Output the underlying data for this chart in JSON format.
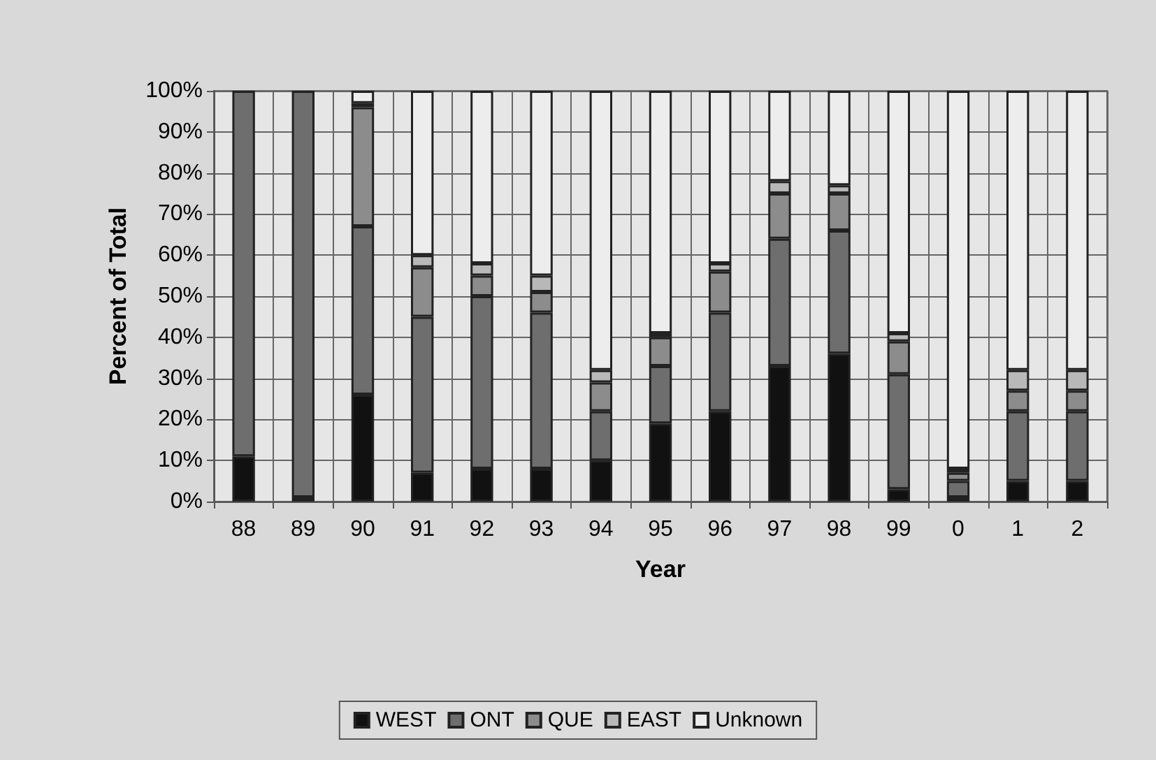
{
  "chart_data": {
    "type": "bar",
    "stacked": true,
    "xlabel": "Year",
    "ylabel": "Percent of Total",
    "categories": [
      "88",
      "89",
      "90",
      "91",
      "92",
      "93",
      "94",
      "95",
      "96",
      "97",
      "98",
      "99",
      "0",
      "1",
      "2"
    ],
    "series": [
      {
        "name": "WEST",
        "color": "#111111",
        "values": [
          11,
          1,
          26,
          7,
          8,
          8,
          10,
          19,
          22,
          33,
          36,
          3,
          1,
          5,
          5
        ]
      },
      {
        "name": "ONT",
        "color": "#6e6e6e",
        "values": [
          89,
          99,
          41,
          38,
          42,
          38,
          12,
          14,
          24,
          31,
          30,
          28,
          4,
          17,
          17
        ]
      },
      {
        "name": "QUE",
        "color": "#8c8c8c",
        "values": [
          0,
          0,
          29,
          12,
          5,
          5,
          7,
          7,
          10,
          11,
          9,
          8,
          2,
          5,
          5
        ]
      },
      {
        "name": "EAST",
        "color": "#b8b8b8",
        "values": [
          0,
          0,
          1,
          3,
          3,
          4,
          3,
          1,
          2,
          3,
          2,
          2,
          1,
          5,
          5
        ]
      },
      {
        "name": "Unknown",
        "color": "#ededed",
        "values": [
          0,
          0,
          3,
          40,
          42,
          45,
          68,
          59,
          42,
          22,
          23,
          59,
          92,
          68,
          68
        ]
      }
    ],
    "ylim": [
      0,
      100
    ],
    "yticks": [
      {
        "value": 0,
        "label": "0%"
      },
      {
        "value": 10,
        "label": "10%"
      },
      {
        "value": 20,
        "label": "20%"
      },
      {
        "value": 30,
        "label": "30%"
      },
      {
        "value": 40,
        "label": "40%"
      },
      {
        "value": 50,
        "label": "50%"
      },
      {
        "value": 60,
        "label": "60%"
      },
      {
        "value": 70,
        "label": "70%"
      },
      {
        "value": 80,
        "label": "80%"
      },
      {
        "value": 90,
        "label": "90%"
      },
      {
        "value": 100,
        "label": "100%"
      }
    ],
    "grid": true,
    "legend": "bottom"
  }
}
